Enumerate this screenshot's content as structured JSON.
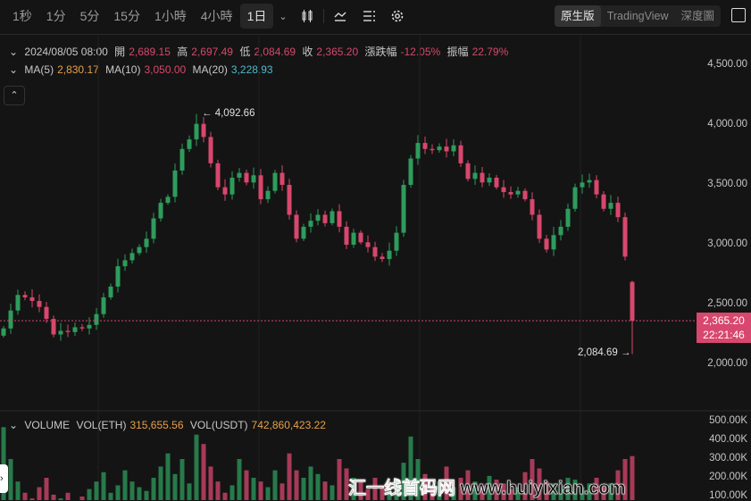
{
  "toolbar": {
    "timeframes": [
      "1秒",
      "1分",
      "5分",
      "15分",
      "1小時",
      "4小時",
      "1日"
    ],
    "active_timeframe": "1日",
    "icons": [
      "candlestick-icon",
      "indicator-icon",
      "list-icon",
      "gear-icon"
    ],
    "views": [
      "原生版",
      "TradingView",
      "深度圖"
    ],
    "active_view": "原生版"
  },
  "ohlc": {
    "date": "2024/08/05 08:00",
    "open_label": "開",
    "open": "2,689.15",
    "high_label": "高",
    "high": "2,697.49",
    "low_label": "低",
    "low": "2,084.69",
    "close_label": "收",
    "close": "2,365.20",
    "change_label": "漲跌幅",
    "change": "-12.05%",
    "amplitude_label": "振幅",
    "amplitude": "22.79%"
  },
  "ma": {
    "ma5_label": "MA(5)",
    "ma5": "2,830.17",
    "ma10_label": "MA(10)",
    "ma10": "3,050.00",
    "ma20_label": "MA(20)",
    "ma20": "3,228.93"
  },
  "volume": {
    "label": "VOLUME",
    "eth_label": "VOL(ETH)",
    "eth": "315,655.56",
    "usdt_label": "VOL(USDT)",
    "usdt": "742,860,423.22"
  },
  "current_price": {
    "price": "2,365.20",
    "countdown": "22:21:46"
  },
  "annotations": {
    "max": "4,092.66",
    "min": "2,084.69"
  },
  "watermark": "汇一线首码网 www.huiyixian.com",
  "colors": {
    "up": "#2e9c5c",
    "down": "#d8476d",
    "ma5": "#e8a04a",
    "ma10": "#d8476d",
    "ma20": "#4fb8c9"
  },
  "chart_data": {
    "type": "candlestick",
    "price_axis": {
      "ticks": [
        "4,500.00",
        "4,000.00",
        "3,500.00",
        "3,000.00",
        "2,500.00",
        "2,000.00"
      ],
      "tick_values": [
        4500,
        4000,
        3500,
        3000,
        2500,
        2000
      ],
      "range": [
        1800,
        4650
      ]
    },
    "volume_axis": {
      "ticks": [
        "500.00K",
        "400.00K",
        "300.00K",
        "200.00K",
        "100.00K"
      ],
      "tick_values": [
        500,
        400,
        300,
        200,
        100
      ]
    },
    "closes": [
      2300,
      2450,
      2580,
      2560,
      2530,
      2480,
      2380,
      2250,
      2280,
      2270,
      2310,
      2300,
      2330,
      2420,
      2560,
      2650,
      2820,
      2870,
      2930,
      2980,
      3050,
      3220,
      3350,
      3400,
      3620,
      3800,
      3880,
      4010,
      3900,
      3680,
      3480,
      3420,
      3560,
      3600,
      3520,
      3580,
      3380,
      3450,
      3600,
      3500,
      3250,
      3050,
      3150,
      3200,
      3250,
      3180,
      3280,
      3150,
      3000,
      3100,
      3020,
      2980,
      2900,
      2880,
      2950,
      3100,
      3500,
      3720,
      3850,
      3800,
      3790,
      3820,
      3780,
      3830,
      3680,
      3550,
      3600,
      3520,
      3560,
      3480,
      3440,
      3420,
      3450,
      3380,
      3250,
      3050,
      2960,
      3080,
      3150,
      3300,
      3480,
      3520,
      3540,
      3420,
      3300,
      3350,
      3230,
      2900,
      2365.2
    ],
    "last_candle": {
      "open": 2689.15,
      "high": 2697.49,
      "low": 2084.69,
      "close": 2365.2
    },
    "max_high": 4092.66,
    "volumes_k": [
      470,
      300,
      180,
      120,
      90,
      150,
      200,
      110,
      90,
      120,
      80,
      100,
      140,
      180,
      230,
      120,
      160,
      240,
      180,
      150,
      130,
      200,
      260,
      330,
      220,
      300,
      170,
      430,
      380,
      260,
      180,
      120,
      160,
      300,
      240,
      200,
      180,
      150,
      240,
      170,
      330,
      240,
      200,
      260,
      220,
      180,
      160,
      300,
      250,
      200,
      180,
      140,
      200,
      160,
      120,
      190,
      280,
      420,
      300,
      220,
      160,
      180,
      260,
      150,
      200,
      240,
      180,
      160,
      210,
      190,
      170,
      140,
      150,
      230,
      300,
      250,
      180,
      170,
      160,
      200,
      190,
      150,
      170,
      200,
      150,
      170,
      240,
      300,
      315.66
    ]
  }
}
